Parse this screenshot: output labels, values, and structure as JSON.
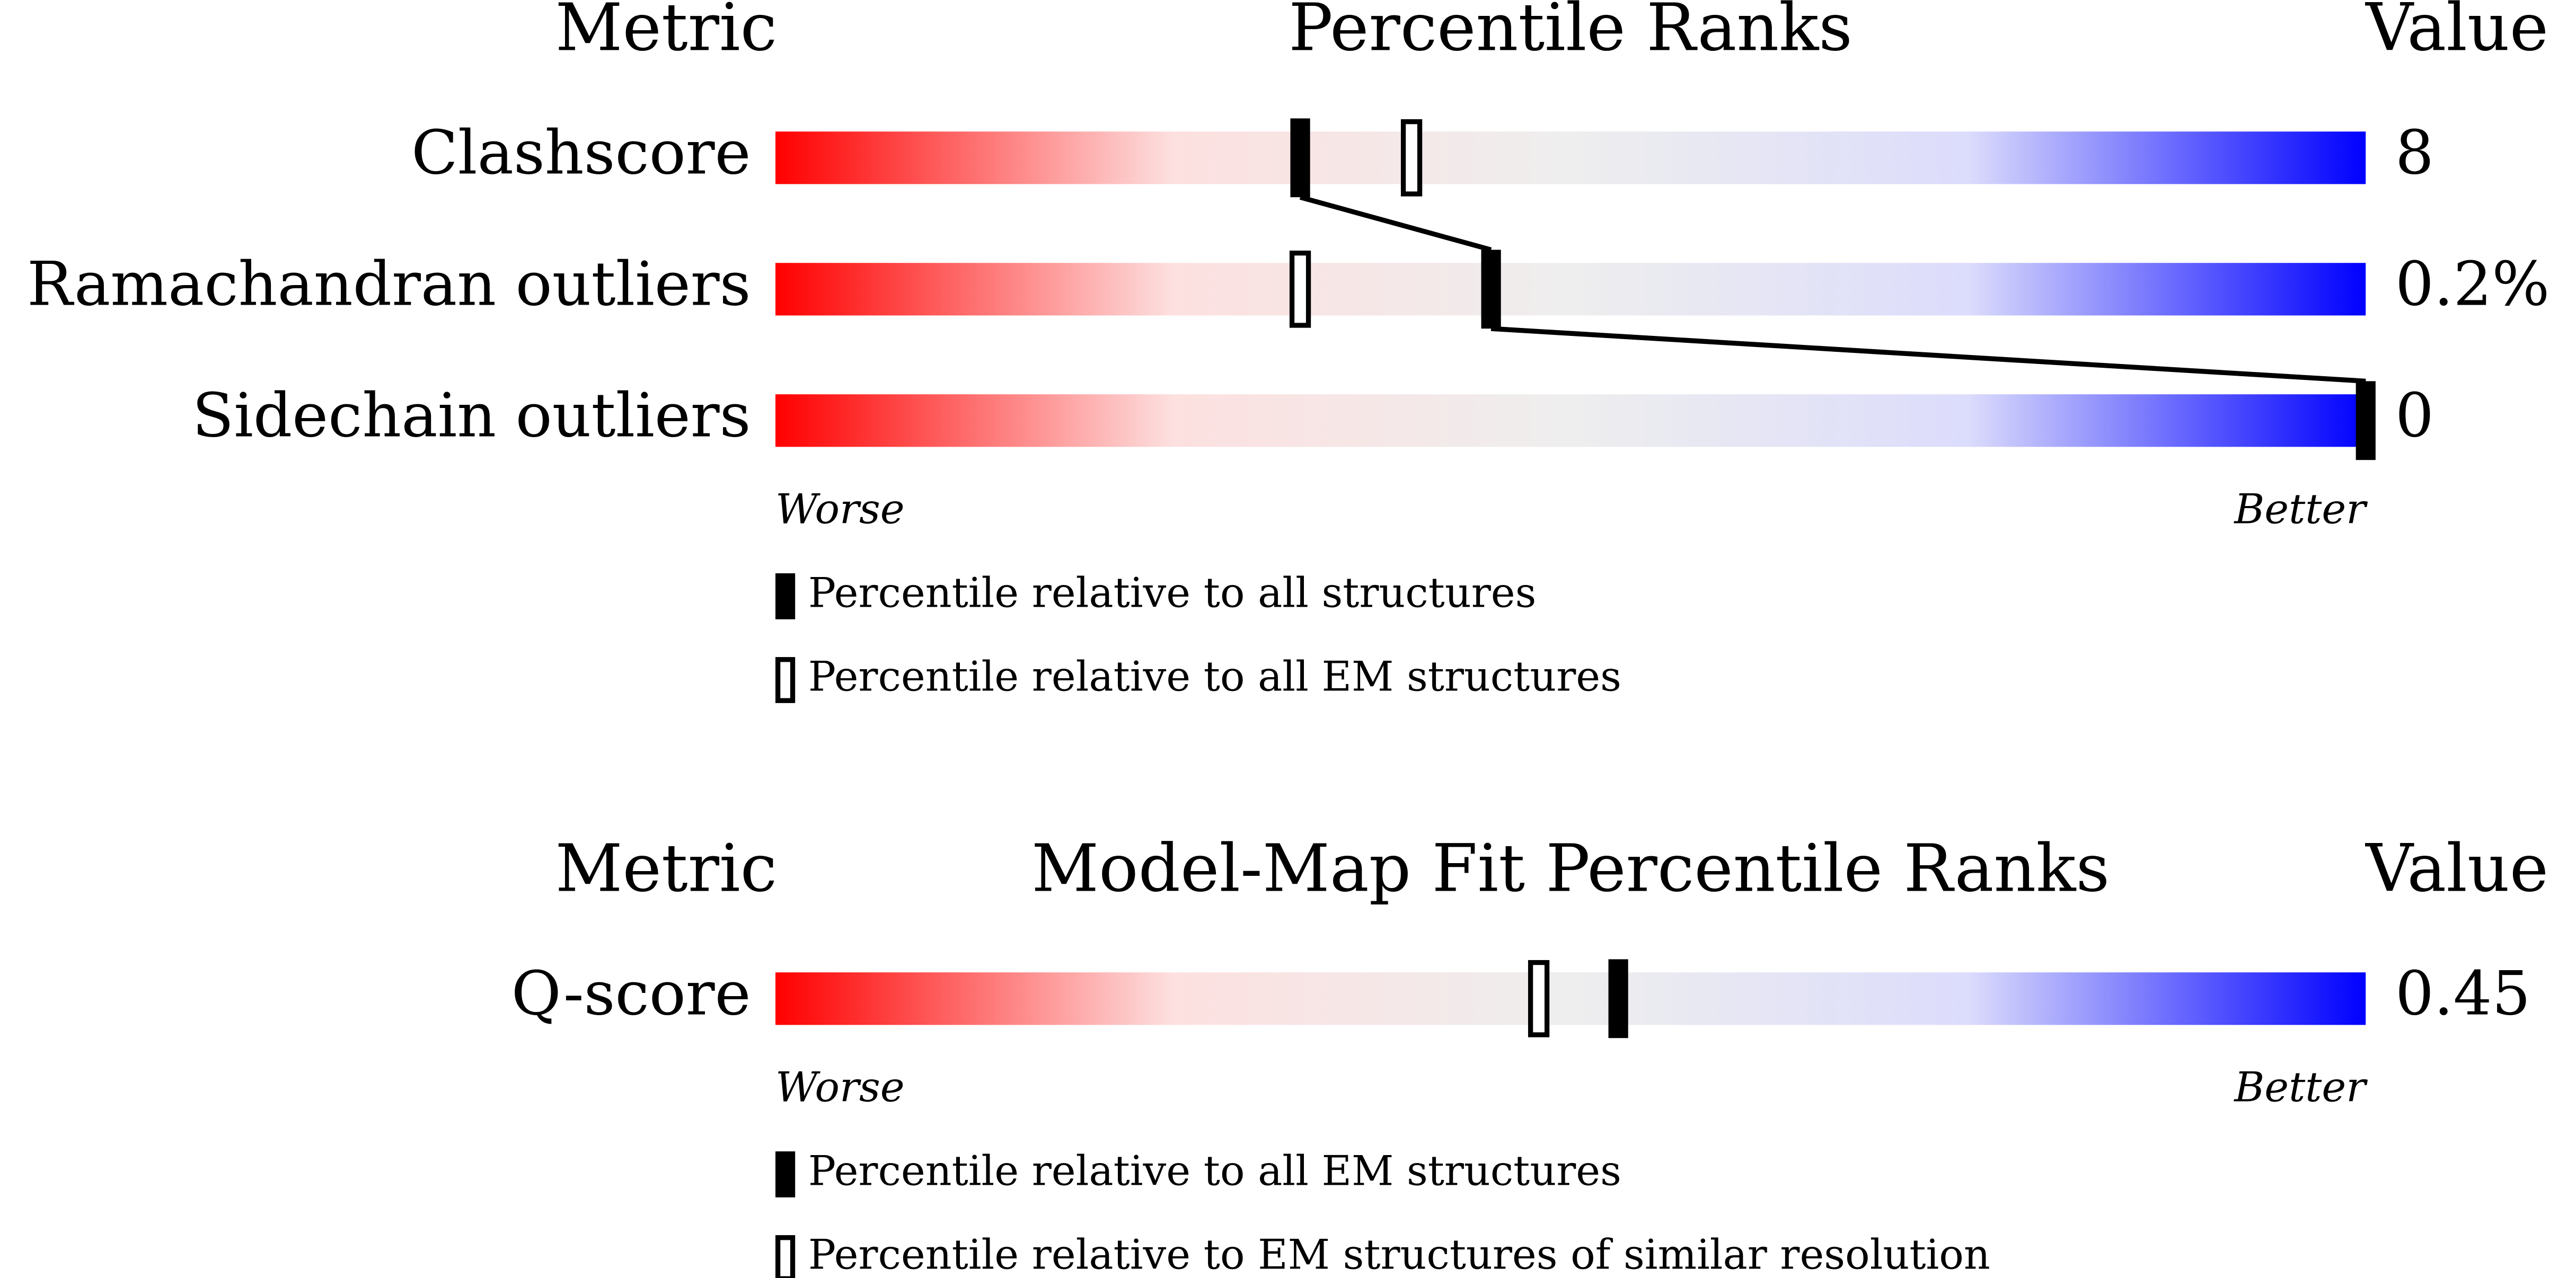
{
  "chart_data": [
    {
      "type": "percentile-slider",
      "metric_header": "Metric",
      "title": "Percentile Ranks",
      "value_header": "Value",
      "categories": [
        "Clashscore",
        "Ramachandran outliers",
        "Sidechain outliers"
      ],
      "metric_values": [
        "8",
        "0.2%",
        "0"
      ],
      "xlim": [
        0,
        100
      ],
      "worse_label": "Worse",
      "better_label": "Better",
      "gradient": [
        "#ff0000",
        "#fde0e0",
        "#eeeeee",
        "#dcdcfc",
        "#0000ff"
      ],
      "series": [
        {
          "name": "Percentile relative to all structures",
          "marker": "filled",
          "connect": true,
          "color": "#000000",
          "values": [
            33,
            45,
            100
          ]
        },
        {
          "name": "Percentile relative to all EM structures",
          "marker": "open",
          "connect": false,
          "color": "#000000",
          "values": [
            40,
            33,
            null
          ]
        }
      ]
    },
    {
      "type": "percentile-slider",
      "metric_header": "Metric",
      "title": "Model-Map Fit Percentile Ranks",
      "value_header": "Value",
      "categories": [
        "Q-score"
      ],
      "metric_values": [
        "0.45"
      ],
      "xlim": [
        0,
        100
      ],
      "worse_label": "Worse",
      "better_label": "Better",
      "gradient": [
        "#ff0000",
        "#fde0e0",
        "#eeeeee",
        "#dcdcfc",
        "#0000ff"
      ],
      "series": [
        {
          "name": "Percentile relative to all EM structures",
          "marker": "filled",
          "connect": true,
          "color": "#000000",
          "values": [
            53
          ]
        },
        {
          "name": "Percentile relative to EM structures of similar resolution",
          "marker": "open",
          "connect": false,
          "color": "#000000",
          "values": [
            48
          ]
        }
      ]
    }
  ]
}
